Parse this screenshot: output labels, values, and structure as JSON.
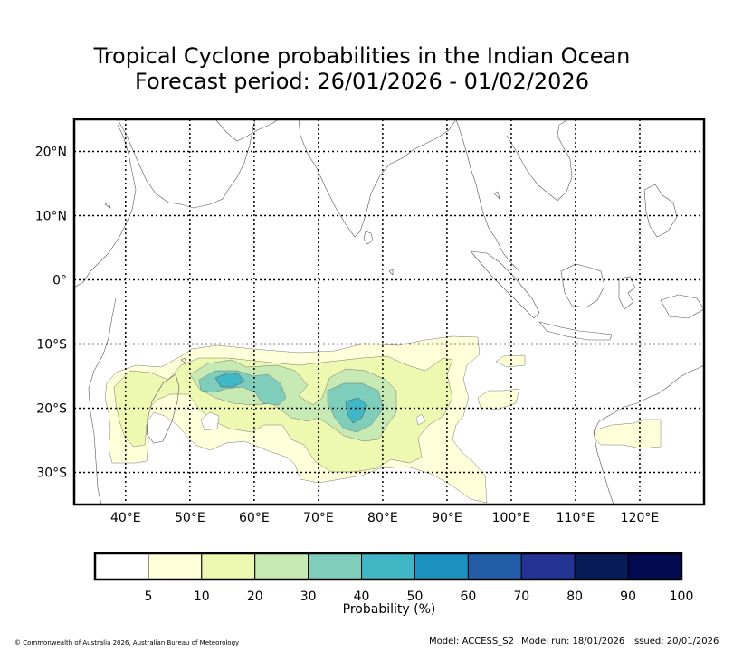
{
  "title": {
    "line1": "Tropical Cyclone probabilities in the Indian Ocean",
    "line2": "Forecast period: 26/01/2026 - 01/02/2026"
  },
  "map": {
    "lon_range": [
      32,
      130
    ],
    "lat_range": [
      -35,
      25
    ],
    "lon_ticks": [
      "40°E",
      "50°E",
      "60°E",
      "70°E",
      "80°E",
      "90°E",
      "100°E",
      "110°E",
      "120°E"
    ],
    "lon_tick_values": [
      40,
      50,
      60,
      70,
      80,
      90,
      100,
      110,
      120
    ],
    "lat_ticks": [
      "20°N",
      "10°N",
      "0°",
      "10°S",
      "20°S",
      "30°S"
    ],
    "lat_tick_values": [
      20,
      10,
      0,
      -10,
      -20,
      -30
    ]
  },
  "legend": {
    "colors": [
      "#ffffff",
      "#ffffd9",
      "#edf8b1",
      "#c7e9b4",
      "#7fcdbb",
      "#41b6c4",
      "#1d91c0",
      "#225ea8",
      "#253494",
      "#081d58",
      "#040a50"
    ],
    "labels": [
      "5",
      "10",
      "20",
      "30",
      "40",
      "50",
      "60",
      "70",
      "80",
      "90",
      "100"
    ],
    "title": "Probability (%)"
  },
  "footer": {
    "copyright": "© Commonwealth of Australia 2026, Australian Bureau of Meteorology",
    "model": "Model: ACCESS_S2",
    "model_run": "Model run: 18/01/2026",
    "issued": "Issued: 20/01/2026"
  }
}
